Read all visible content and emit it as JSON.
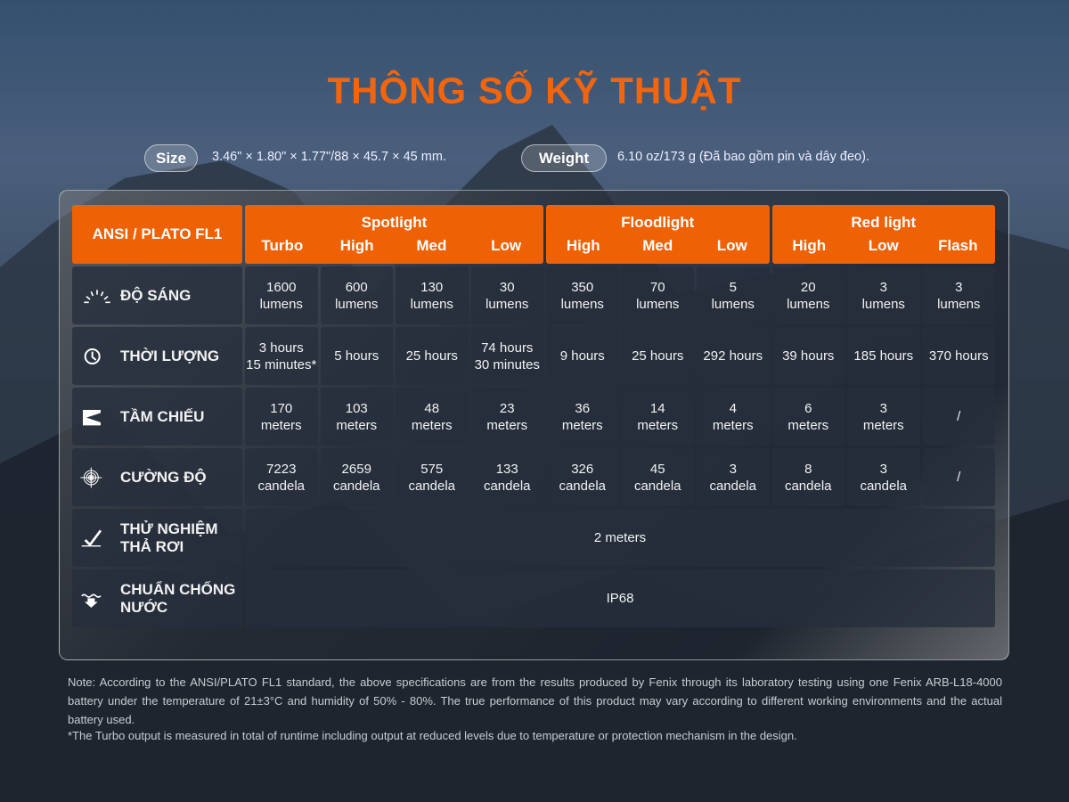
{
  "title": "THÔNG SỐ KỸ THUẬT",
  "size": {
    "label": "Size",
    "value": "3.46\" × 1.80\" × 1.77\"/88 × 45.7 × 45 mm."
  },
  "weight": {
    "label": "Weight",
    "value": "6.10 oz/173 g (Đã bao gồm pin và dây đeo)."
  },
  "accent": "#ee6105",
  "table": {
    "corner": "ANSI / PLATO FL1",
    "groups": [
      {
        "title": "Spotlight",
        "modes": [
          "Turbo",
          "High",
          "Med",
          "Low"
        ]
      },
      {
        "title": "Floodlight",
        "modes": [
          "High",
          "Med",
          "Low"
        ]
      },
      {
        "title": "Red light",
        "modes": [
          "High",
          "Low",
          "Flash"
        ]
      }
    ],
    "rows": [
      {
        "icon": "sun-rays-icon",
        "label": "ĐỘ SÁNG",
        "values": [
          "1600\nlumens",
          "600\nlumens",
          "130\nlumens",
          "30\nlumens",
          "350\nlumens",
          "70\nlumens",
          "5\nlumens",
          "20\nlumens",
          "3\nlumens",
          "3\nlumens"
        ]
      },
      {
        "icon": "clock-icon",
        "label": "THỜI LƯỢNG",
        "values": [
          "3 hours\n15 minutes*",
          "5 hours",
          "25 hours",
          "74 hours\n30 minutes",
          "9 hours",
          "25 hours",
          "292 hours",
          "39 hours",
          "185 hours",
          "370 hours"
        ]
      },
      {
        "icon": "beam-distance-icon",
        "label": "TẦM CHIẾU",
        "values": [
          "170\nmeters",
          "103\nmeters",
          "48\nmeters",
          "23\nmeters",
          "36\nmeters",
          "14\nmeters",
          "4\nmeters",
          "6\nmeters",
          "3\nmeters",
          "/"
        ]
      },
      {
        "icon": "target-icon",
        "label": "CƯỜNG ĐỘ",
        "values": [
          "7223\ncandela",
          "2659\ncandela",
          "575\ncandela",
          "133\ncandela",
          "326\ncandela",
          "45\ncandela",
          "3\ncandela",
          "8\ncandela",
          "3\ncandela",
          "/"
        ]
      }
    ],
    "impact": {
      "icon": "drop-test-icon",
      "label": "THỬ NGHIỆM\nTHẢ RƠI",
      "value": "2 meters"
    },
    "water": {
      "icon": "waterproof-icon",
      "label": "CHUẨN CHỐNG\nNƯỚC",
      "value": "IP68"
    }
  },
  "note": "Note: According to the ANSI/PLATO FL1 standard, the above specifications are from the results produced by Fenix through its laboratory testing using one Fenix ARB-L18-4000 battery under the temperature of 21±3°C and humidity of 50% - 80%. The true performance of this product may vary according to different working environments and the actual battery used.",
  "footnote": "*The Turbo output is measured in total of runtime including output at reduced levels due to temperature or protection mechanism in the design."
}
